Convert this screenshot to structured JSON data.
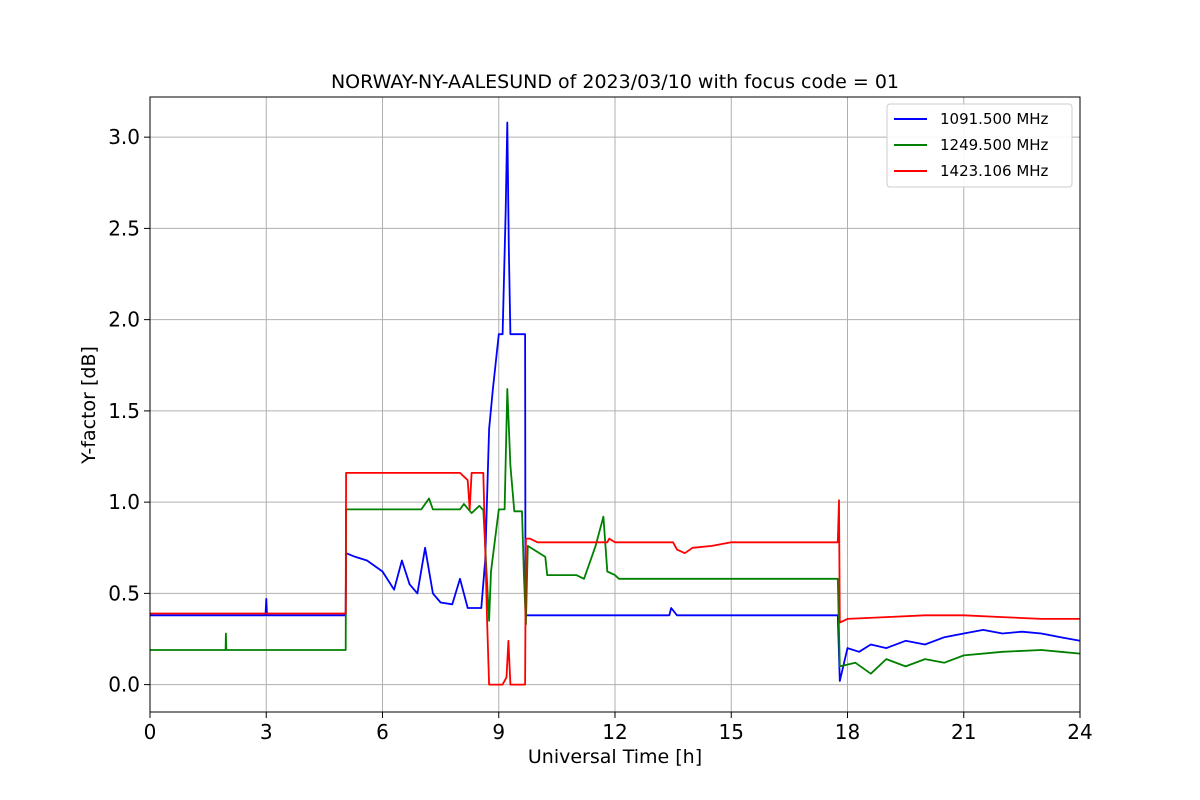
{
  "chart_data": {
    "type": "line",
    "title": "NORWAY-NY-AALESUND of 2023/03/10 with focus code = 01",
    "xlabel": "Universal Time [h]",
    "ylabel": "Y-factor [dB]",
    "xlim": [
      0,
      24
    ],
    "ylim": [
      -0.15,
      3.22
    ],
    "xticks": [
      0,
      3,
      6,
      9,
      12,
      15,
      18,
      21,
      24
    ],
    "yticks": [
      0.0,
      0.5,
      1.0,
      1.5,
      2.0,
      2.5,
      3.0
    ],
    "xtick_labels": [
      "0",
      "3",
      "6",
      "9",
      "12",
      "15",
      "18",
      "21",
      "24"
    ],
    "ytick_labels": [
      "0.0",
      "0.5",
      "1.0",
      "1.5",
      "2.0",
      "2.5",
      "3.0"
    ],
    "grid": true,
    "legend_position": "top-right",
    "series": [
      {
        "name": "1091.500 MHz",
        "color": "#0000ff",
        "x": [
          0,
          1,
          2,
          2.98,
          3.0,
          3.02,
          4,
          5.05,
          5.06,
          5.3,
          5.6,
          6.0,
          6.3,
          6.5,
          6.7,
          6.9,
          7.1,
          7.3,
          7.5,
          7.8,
          8.0,
          8.2,
          8.4,
          8.55,
          8.65,
          8.75,
          8.85,
          9.0,
          9.1,
          9.18,
          9.22,
          9.26,
          9.3,
          9.35,
          9.5,
          9.68,
          9.69,
          12,
          13.4,
          13.45,
          13.6,
          15,
          17.7,
          17.75,
          17.8,
          18.0,
          18.3,
          18.6,
          19.0,
          19.5,
          20.0,
          20.5,
          21.0,
          21.5,
          22.0,
          22.5,
          23.0,
          23.5,
          24.0
        ],
        "y": [
          0.38,
          0.38,
          0.38,
          0.38,
          0.47,
          0.38,
          0.38,
          0.38,
          0.72,
          0.7,
          0.68,
          0.62,
          0.52,
          0.68,
          0.55,
          0.5,
          0.75,
          0.5,
          0.45,
          0.44,
          0.58,
          0.42,
          0.42,
          0.42,
          0.68,
          1.4,
          1.62,
          1.92,
          1.92,
          2.6,
          3.08,
          2.4,
          1.92,
          1.92,
          1.92,
          1.92,
          0.38,
          0.38,
          0.38,
          0.42,
          0.38,
          0.38,
          0.38,
          0.38,
          0.02,
          0.2,
          0.18,
          0.22,
          0.2,
          0.24,
          0.22,
          0.26,
          0.28,
          0.3,
          0.28,
          0.29,
          0.28,
          0.26,
          0.24
        ]
      },
      {
        "name": "1249.500 MHz",
        "color": "#008000",
        "x": [
          0,
          1,
          1.95,
          1.96,
          1.97,
          3,
          5.05,
          5.06,
          6,
          7,
          7.2,
          7.3,
          8,
          8.1,
          8.3,
          8.5,
          8.58,
          8.6,
          8.75,
          8.8,
          9.0,
          9.15,
          9.22,
          9.3,
          9.4,
          9.6,
          9.65,
          9.7,
          9.75,
          10.2,
          10.25,
          11,
          11.2,
          11.5,
          11.7,
          11.8,
          12.0,
          12.1,
          13,
          15,
          17.7,
          17.75,
          17.8,
          18.2,
          18.6,
          19.0,
          19.5,
          20.0,
          20.5,
          21.0,
          22.0,
          23.0,
          23.5,
          24.0
        ],
        "y": [
          0.19,
          0.19,
          0.19,
          0.28,
          0.19,
          0.19,
          0.19,
          0.96,
          0.96,
          0.96,
          1.02,
          0.96,
          0.96,
          0.99,
          0.94,
          0.98,
          0.96,
          0.96,
          0.35,
          0.62,
          0.96,
          0.96,
          1.62,
          1.2,
          0.95,
          0.95,
          0.6,
          0.33,
          0.76,
          0.7,
          0.6,
          0.6,
          0.58,
          0.76,
          0.92,
          0.62,
          0.6,
          0.58,
          0.58,
          0.58,
          0.58,
          0.58,
          0.1,
          0.12,
          0.06,
          0.14,
          0.1,
          0.14,
          0.12,
          0.16,
          0.18,
          0.19,
          0.18,
          0.17
        ]
      },
      {
        "name": "1423.106 MHz",
        "color": "#ff0000",
        "x": [
          0,
          1,
          2,
          3,
          4,
          5.05,
          5.06,
          6,
          7,
          8.0,
          8.2,
          8.25,
          8.3,
          8.55,
          8.6,
          8.7,
          8.75,
          9.1,
          9.2,
          9.25,
          9.3,
          9.68,
          9.7,
          9.8,
          10.0,
          11.0,
          11.8,
          11.85,
          12.0,
          13.5,
          13.6,
          13.8,
          14.0,
          14.5,
          15,
          17.7,
          17.75,
          17.78,
          17.8,
          18.0,
          19.0,
          20.0,
          21.0,
          22.0,
          23.0,
          24.0
        ],
        "y": [
          0.39,
          0.39,
          0.39,
          0.39,
          0.39,
          0.39,
          1.16,
          1.16,
          1.16,
          1.16,
          1.12,
          0.96,
          1.16,
          1.16,
          1.16,
          0.35,
          0.0,
          0.0,
          0.04,
          0.24,
          0.0,
          0.0,
          0.8,
          0.8,
          0.78,
          0.78,
          0.78,
          0.8,
          0.78,
          0.78,
          0.74,
          0.72,
          0.75,
          0.76,
          0.78,
          0.78,
          0.78,
          1.01,
          0.34,
          0.36,
          0.37,
          0.38,
          0.38,
          0.37,
          0.36,
          0.36
        ]
      }
    ]
  }
}
